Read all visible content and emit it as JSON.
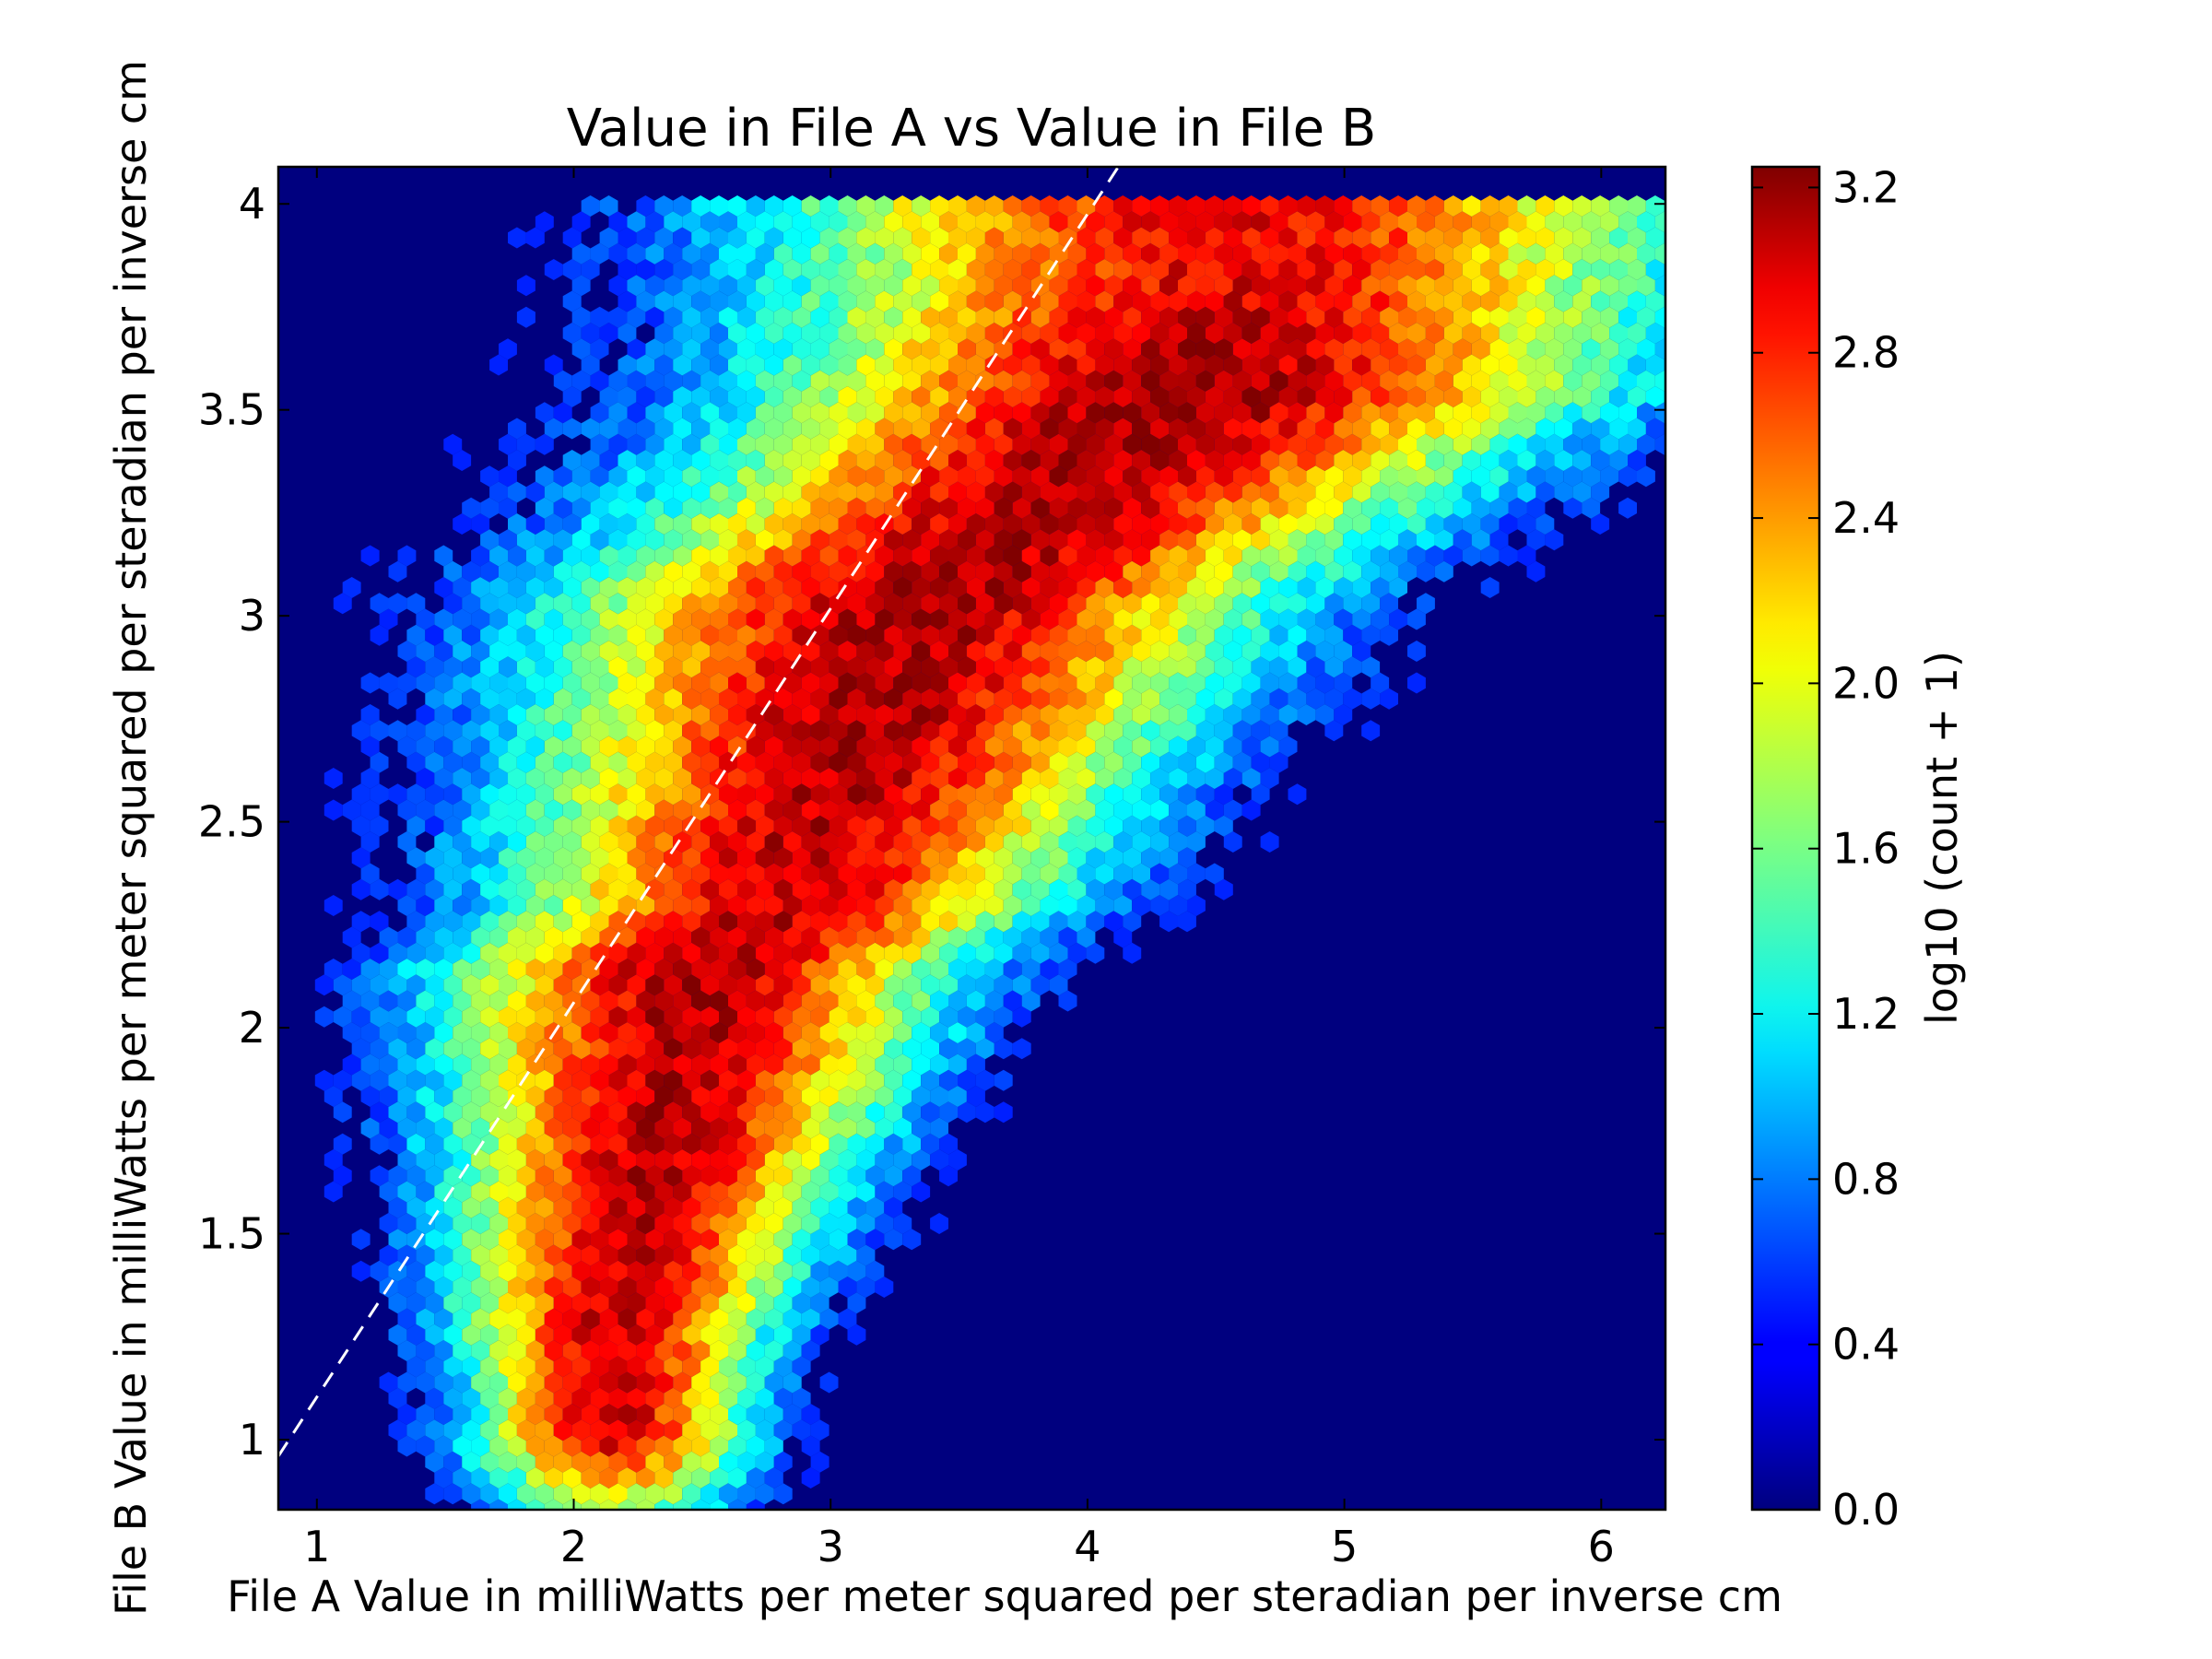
{
  "chart_data": {
    "type": "heatmap",
    "subtype": "hexbin",
    "title": "Value in File A vs Value in File B",
    "xlabel": "File A Value in milliWatts per meter squared per steradian per inverse cm",
    "ylabel": "File B Value in milliWatts per meter squared per steradian per inverse cm",
    "xlim": [
      0.85,
      6.25
    ],
    "ylim": [
      0.83,
      4.09
    ],
    "xticks": [
      1,
      2,
      3,
      4,
      5,
      6
    ],
    "yticks": [
      1,
      1.5,
      2,
      2.5,
      3,
      3.5,
      4
    ],
    "xtick_labels": [
      "1",
      "2",
      "3",
      "4",
      "5",
      "6"
    ],
    "ytick_labels": [
      "1",
      "1.5",
      "2",
      "2.5",
      "3",
      "3.5",
      "4"
    ],
    "grid": false,
    "background_color": "#00007f",
    "colormap": "jet",
    "colorbar": {
      "label": "log10 (count + 1)",
      "range": [
        0.0,
        3.25
      ],
      "ticks": [
        0.0,
        0.4,
        0.8,
        1.2,
        1.6,
        2.0,
        2.4,
        2.8,
        3.2
      ],
      "tick_labels": [
        "0.0",
        "0.4",
        "0.8",
        "1.2",
        "1.6",
        "2.0",
        "2.4",
        "2.8",
        "3.2"
      ]
    },
    "reference_line": {
      "style": "dashed",
      "color": "#ffffff",
      "x": [
        0.85,
        4.12
      ],
      "y": [
        0.96,
        4.09
      ]
    },
    "density_ridge": [
      {
        "x": 2.15,
        "y": 1.25,
        "value": 3.0
      },
      {
        "x": 2.5,
        "y": 2.15,
        "value": 3.1
      },
      {
        "x": 2.8,
        "y": 2.3,
        "value": 3.0
      },
      {
        "x": 3.35,
        "y": 3.05,
        "value": 3.15
      },
      {
        "x": 3.8,
        "y": 3.25,
        "value": 3.05
      },
      {
        "x": 4.4,
        "y": 3.55,
        "value": 3.2
      },
      {
        "x": 4.55,
        "y": 3.82,
        "value": 2.9
      }
    ]
  }
}
